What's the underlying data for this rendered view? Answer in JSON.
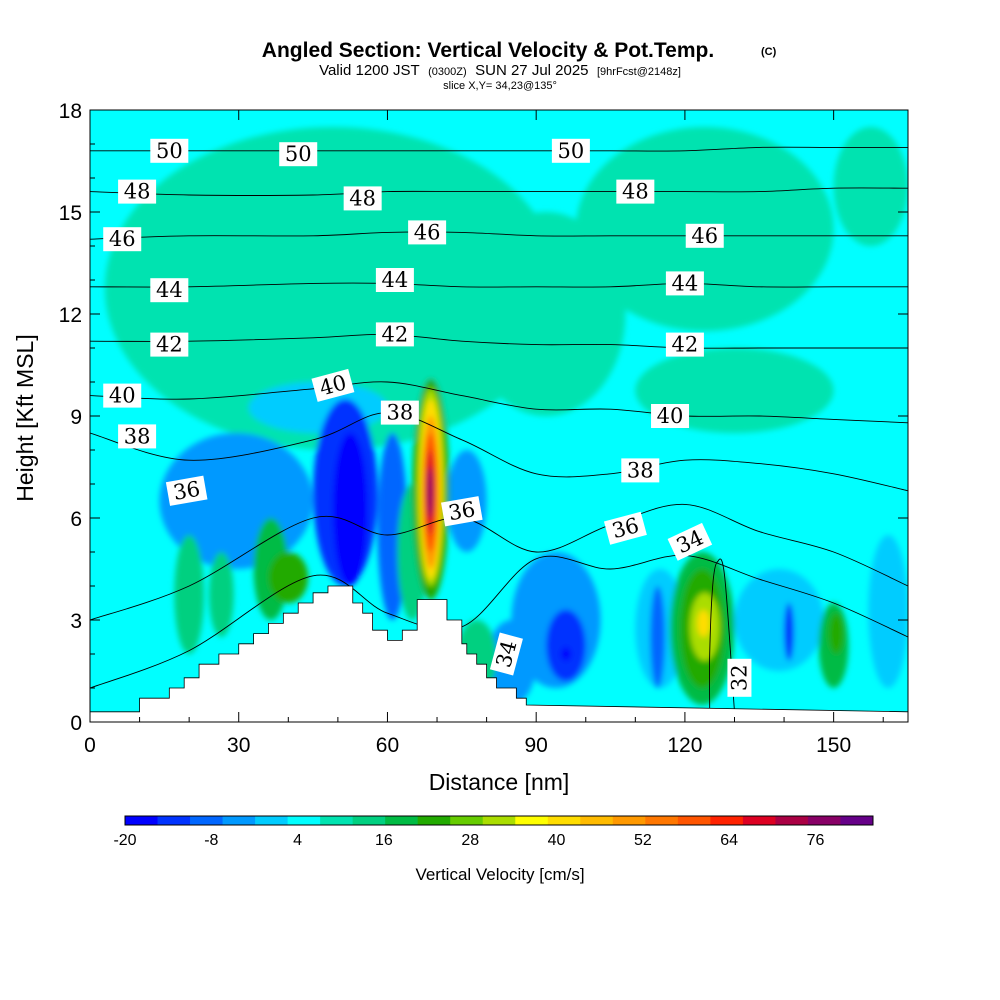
{
  "chart_data": {
    "type": "heatmap",
    "title": "Angled Section: Vertical Velocity & Pot.Temp.",
    "title_mark": "(C)",
    "subtitle": {
      "valid": "Valid 1200 JST",
      "utc": "(0300Z)",
      "date": "SUN 27 Jul 2025",
      "fcst": "[9hrFcst@2148z]",
      "slice": "slice X,Y= 34,23@135°"
    },
    "xlabel": "Distance [nm]",
    "ylabel": "Height [Kft MSL]",
    "xlim": [
      0,
      165
    ],
    "ylim": [
      0,
      18
    ],
    "x_ticks": [
      "0",
      "30",
      "60",
      "90",
      "120",
      "150"
    ],
    "y_ticks": [
      "0",
      "3",
      "6",
      "9",
      "12",
      "15",
      "18"
    ],
    "colorbar": {
      "title": "Vertical Velocity [cm/s]",
      "min": -20,
      "max": 84,
      "step": 4,
      "tick_labels": [
        "-20",
        "-8",
        "4",
        "16",
        "28",
        "40",
        "52",
        "64",
        "76"
      ],
      "colors": [
        "#0000ff",
        "#0033ff",
        "#0066ff",
        "#0099ff",
        "#00ccff",
        "#00ffff",
        "#00e3b0",
        "#00d080",
        "#00bb44",
        "#22aa00",
        "#66cc00",
        "#aadd00",
        "#ffff00",
        "#ffdd00",
        "#ffbb00",
        "#ff9900",
        "#ff7700",
        "#ff5500",
        "#ff2200",
        "#dd0022",
        "#aa0044",
        "#880066",
        "#660088"
      ]
    },
    "background_value": 2,
    "velocity_cells": [
      {
        "x": [
          3,
          95
        ],
        "y": [
          8,
          17.5
        ],
        "value": 6
      },
      {
        "x": [
          98,
          150
        ],
        "y": [
          11.5,
          17.5
        ],
        "value": 6
      },
      {
        "x": [
          150,
          165
        ],
        "y": [
          14,
          17.5
        ],
        "value": 6
      },
      {
        "x": [
          76,
          108
        ],
        "y": [
          9,
          15
        ],
        "value": 6
      },
      {
        "x": [
          110,
          150
        ],
        "y": [
          8.5,
          11
        ],
        "value": 6
      },
      {
        "x": [
          32,
          60
        ],
        "y": [
          8.5,
          10
        ],
        "value": -2
      },
      {
        "x": [
          14,
          45
        ],
        "y": [
          4.5,
          8.5
        ],
        "value": -6
      },
      {
        "x": [
          45,
          58
        ],
        "y": [
          4,
          9.5
        ],
        "value": -14
      },
      {
        "x": [
          49,
          56
        ],
        "y": [
          4,
          8.5
        ],
        "value": -20
      },
      {
        "x": [
          58,
          64
        ],
        "y": [
          3,
          8.5
        ],
        "value": -10
      },
      {
        "x": [
          72,
          80
        ],
        "y": [
          5,
          8
        ],
        "value": -6
      },
      {
        "x": [
          85,
          103
        ],
        "y": [
          1,
          5
        ],
        "value": -6
      },
      {
        "x": [
          92,
          100
        ],
        "y": [
          1.2,
          3.3
        ],
        "value": -14
      },
      {
        "x": [
          95,
          97
        ],
        "y": [
          1.8,
          2.2
        ],
        "value": -20
      },
      {
        "x": [
          80,
          90
        ],
        "y": [
          0.5,
          3
        ],
        "value": -6
      },
      {
        "x": [
          110,
          120
        ],
        "y": [
          1,
          4.5
        ],
        "value": -2
      },
      {
        "x": [
          130,
          148
        ],
        "y": [
          1.5,
          4.5
        ],
        "value": -2
      },
      {
        "x": [
          113,
          116
        ],
        "y": [
          1,
          4
        ],
        "value": -10
      },
      {
        "x": [
          140,
          142
        ],
        "y": [
          1.8,
          3.5
        ],
        "value": -14
      },
      {
        "x": [
          157,
          165
        ],
        "y": [
          1,
          5.5
        ],
        "value": -2
      },
      {
        "x": [
          17,
          23
        ],
        "y": [
          2,
          5.5
        ],
        "value": 10
      },
      {
        "x": [
          24,
          29
        ],
        "y": [
          2.5,
          5
        ],
        "value": 10
      },
      {
        "x": [
          33,
          40
        ],
        "y": [
          3,
          6
        ],
        "value": 14
      },
      {
        "x": [
          36,
          44
        ],
        "y": [
          3.5,
          5
        ],
        "value": 18
      },
      {
        "x": [
          62,
          68
        ],
        "y": [
          3,
          7
        ],
        "value": 10
      },
      {
        "x": [
          74,
          82
        ],
        "y": [
          0.8,
          3
        ],
        "value": 10
      },
      {
        "x": [
          117,
          130
        ],
        "y": [
          0.5,
          5
        ],
        "value": 14
      },
      {
        "x": [
          119,
          128
        ],
        "y": [
          1,
          4.5
        ],
        "value": 18
      },
      {
        "x": [
          121,
          127
        ],
        "y": [
          1.8,
          3.8
        ],
        "value": 26
      },
      {
        "x": [
          122.5,
          125
        ],
        "y": [
          2.5,
          3.3
        ],
        "value": 34
      },
      {
        "x": [
          147,
          153
        ],
        "y": [
          1,
          3.5
        ],
        "value": 14
      },
      {
        "x": [
          149,
          152
        ],
        "y": [
          2,
          3.2
        ],
        "value": 18
      },
      {
        "x": [
          65,
          72.5
        ],
        "y": [
          3.6,
          10.1
        ],
        "value": 18
      },
      {
        "x": [
          66,
          71.5
        ],
        "y": [
          4,
          9.8
        ],
        "value": 26
      },
      {
        "x": [
          66.5,
          71
        ],
        "y": [
          4.2,
          9.5
        ],
        "value": 34
      },
      {
        "x": [
          67,
          70.5
        ],
        "y": [
          4.5,
          9
        ],
        "value": 42
      },
      {
        "x": [
          67.3,
          70
        ],
        "y": [
          5,
          8.5
        ],
        "value": 50
      },
      {
        "x": [
          67.7,
          69.5
        ],
        "y": [
          5.5,
          8
        ],
        "value": 58
      },
      {
        "x": [
          68,
          69.2
        ],
        "y": [
          6,
          7.5
        ],
        "value": 66
      }
    ],
    "terrain": [
      [
        0,
        0.3
      ],
      [
        10,
        0.3
      ],
      [
        10,
        0.7
      ],
      [
        16,
        0.7
      ],
      [
        16,
        1.0
      ],
      [
        19,
        1.0
      ],
      [
        19,
        1.3
      ],
      [
        22,
        1.3
      ],
      [
        22,
        1.7
      ],
      [
        26,
        1.7
      ],
      [
        26,
        2.0
      ],
      [
        30,
        2.0
      ],
      [
        30,
        2.3
      ],
      [
        33,
        2.3
      ],
      [
        33,
        2.6
      ],
      [
        36,
        2.6
      ],
      [
        36,
        2.9
      ],
      [
        39,
        2.9
      ],
      [
        39,
        3.2
      ],
      [
        42,
        3.2
      ],
      [
        42,
        3.5
      ],
      [
        45,
        3.5
      ],
      [
        45,
        3.8
      ],
      [
        48,
        3.8
      ],
      [
        48,
        4.0
      ],
      [
        53,
        4.0
      ],
      [
        53,
        3.5
      ],
      [
        55,
        3.5
      ],
      [
        55,
        3.2
      ],
      [
        57,
        3.2
      ],
      [
        57,
        2.7
      ],
      [
        60,
        2.7
      ],
      [
        60,
        2.4
      ],
      [
        63,
        2.4
      ],
      [
        63,
        2.7
      ],
      [
        66,
        2.7
      ],
      [
        66,
        3.6
      ],
      [
        72,
        3.6
      ],
      [
        72,
        3.0
      ],
      [
        75,
        3.0
      ],
      [
        75,
        2.3
      ],
      [
        76,
        2.3
      ],
      [
        76,
        2.0
      ],
      [
        78,
        2.0
      ],
      [
        78,
        1.7
      ],
      [
        80,
        1.7
      ],
      [
        80,
        1.3
      ],
      [
        82,
        1.3
      ],
      [
        82,
        1.0
      ],
      [
        86,
        1.0
      ],
      [
        86,
        0.7
      ],
      [
        88,
        0.7
      ],
      [
        88,
        0.5
      ],
      [
        165,
        0.3
      ]
    ],
    "theta_contours": [
      {
        "value": 32,
        "points": [
          [
            125.0,
            0.3
          ],
          [
            125.0,
            2.0
          ],
          [
            125.6,
            4.0
          ],
          [
            126.5,
            4.7
          ],
          [
            128.0,
            4.3
          ],
          [
            130.0,
            0.3
          ]
        ]
      },
      {
        "value": 34,
        "points": [
          [
            0.0,
            1.0
          ],
          [
            20.0,
            2.1
          ],
          [
            45.0,
            4.3
          ],
          [
            60.0,
            3.2
          ],
          [
            75.0,
            2.8
          ],
          [
            90.0,
            4.8
          ],
          [
            105.0,
            4.5
          ],
          [
            120.0,
            4.9
          ],
          [
            135.0,
            4.2
          ],
          [
            150.0,
            3.5
          ],
          [
            165.0,
            2.5
          ]
        ]
      },
      {
        "value": 36,
        "points": [
          [
            0.0,
            3.0
          ],
          [
            20.0,
            4.0
          ],
          [
            45.0,
            6.0
          ],
          [
            60.0,
            5.5
          ],
          [
            75.0,
            6.0
          ],
          [
            90.0,
            5.0
          ],
          [
            105.0,
            5.8
          ],
          [
            120.0,
            6.4
          ],
          [
            135.0,
            5.6
          ],
          [
            150.0,
            5.0
          ],
          [
            165.0,
            4.0
          ]
        ]
      },
      {
        "value": 38,
        "points": [
          [
            0.0,
            8.5
          ],
          [
            20.0,
            7.7
          ],
          [
            45.0,
            8.3
          ],
          [
            60.0,
            9.1
          ],
          [
            75.0,
            8.3
          ],
          [
            90.0,
            7.3
          ],
          [
            105.0,
            7.3
          ],
          [
            120.0,
            7.7
          ],
          [
            135.0,
            7.6
          ],
          [
            150.0,
            7.3
          ],
          [
            165.0,
            6.8
          ]
        ]
      },
      {
        "value": 40,
        "points": [
          [
            0.0,
            9.6
          ],
          [
            20.0,
            9.5
          ],
          [
            45.0,
            9.8
          ],
          [
            60.0,
            10.0
          ],
          [
            75.0,
            9.6
          ],
          [
            90.0,
            9.2
          ],
          [
            105.0,
            9.2
          ],
          [
            120.0,
            9.0
          ],
          [
            135.0,
            9.0
          ],
          [
            150.0,
            8.9
          ],
          [
            165.0,
            8.8
          ]
        ]
      },
      {
        "value": 42,
        "points": [
          [
            0.0,
            11.2
          ],
          [
            20.0,
            11.2
          ],
          [
            45.0,
            11.3
          ],
          [
            60.0,
            11.4
          ],
          [
            75.0,
            11.2
          ],
          [
            90.0,
            11.1
          ],
          [
            105.0,
            11.1
          ],
          [
            120.0,
            11.0
          ],
          [
            135.0,
            11.0
          ],
          [
            150.0,
            11.0
          ],
          [
            165.0,
            11.0
          ]
        ]
      },
      {
        "value": 44,
        "points": [
          [
            0.0,
            12.8
          ],
          [
            20.0,
            12.8
          ],
          [
            45.0,
            12.9
          ],
          [
            60.0,
            12.9
          ],
          [
            75.0,
            12.8
          ],
          [
            90.0,
            12.8
          ],
          [
            105.0,
            12.8
          ],
          [
            120.0,
            12.9
          ],
          [
            135.0,
            12.8
          ],
          [
            150.0,
            12.8
          ],
          [
            165.0,
            12.8
          ]
        ]
      },
      {
        "value": 46,
        "points": [
          [
            0.0,
            14.2
          ],
          [
            20.0,
            14.3
          ],
          [
            45.0,
            14.3
          ],
          [
            60.0,
            14.4
          ],
          [
            75.0,
            14.4
          ],
          [
            90.0,
            14.3
          ],
          [
            105.0,
            14.3
          ],
          [
            120.0,
            14.3
          ],
          [
            135.0,
            14.3
          ],
          [
            150.0,
            14.3
          ],
          [
            165.0,
            14.3
          ]
        ]
      },
      {
        "value": 48,
        "points": [
          [
            0.0,
            15.6
          ],
          [
            20.0,
            15.5
          ],
          [
            45.0,
            15.5
          ],
          [
            60.0,
            15.6
          ],
          [
            75.0,
            15.6
          ],
          [
            90.0,
            15.6
          ],
          [
            105.0,
            15.6
          ],
          [
            120.0,
            15.6
          ],
          [
            135.0,
            15.6
          ],
          [
            150.0,
            15.7
          ],
          [
            165.0,
            15.7
          ]
        ]
      },
      {
        "value": 50,
        "points": [
          [
            0.0,
            16.8
          ],
          [
            20.0,
            16.8
          ],
          [
            45.0,
            16.8
          ],
          [
            60.0,
            16.8
          ],
          [
            75.0,
            16.8
          ],
          [
            90.0,
            16.8
          ],
          [
            105.0,
            16.8
          ],
          [
            120.0,
            16.8
          ],
          [
            135.0,
            16.9
          ],
          [
            150.0,
            16.9
          ],
          [
            165.0,
            16.9
          ]
        ]
      }
    ],
    "contour_labels": [
      {
        "text": "50",
        "x": 16,
        "y": 16.8,
        "angle": 0
      },
      {
        "text": "50",
        "x": 42,
        "y": 16.7,
        "angle": 0
      },
      {
        "text": "50",
        "x": 97,
        "y": 16.8,
        "angle": 0
      },
      {
        "text": "48",
        "x": 9.5,
        "y": 15.6,
        "angle": 0
      },
      {
        "text": "48",
        "x": 55,
        "y": 15.4,
        "angle": 0
      },
      {
        "text": "48",
        "x": 110,
        "y": 15.6,
        "angle": 0
      },
      {
        "text": "46",
        "x": 6.5,
        "y": 14.2,
        "angle": 0
      },
      {
        "text": "46",
        "x": 68,
        "y": 14.4,
        "angle": 0
      },
      {
        "text": "46",
        "x": 124,
        "y": 14.3,
        "angle": 0
      },
      {
        "text": "44",
        "x": 16,
        "y": 12.7,
        "angle": 0
      },
      {
        "text": "44",
        "x": 61.5,
        "y": 13.0,
        "angle": 0
      },
      {
        "text": "44",
        "x": 120,
        "y": 12.9,
        "angle": 0
      },
      {
        "text": "42",
        "x": 16,
        "y": 11.1,
        "angle": 0
      },
      {
        "text": "42",
        "x": 61.5,
        "y": 11.4,
        "angle": 0
      },
      {
        "text": "42",
        "x": 120,
        "y": 11.1,
        "angle": 0
      },
      {
        "text": "40",
        "x": 6.5,
        "y": 9.6,
        "angle": 0
      },
      {
        "text": "40",
        "x": 49,
        "y": 9.9,
        "angle": -15
      },
      {
        "text": "40",
        "x": 117,
        "y": 9.0,
        "angle": 0
      },
      {
        "text": "38",
        "x": 9.5,
        "y": 8.4,
        "angle": 0
      },
      {
        "text": "38",
        "x": 62.5,
        "y": 9.1,
        "angle": 0
      },
      {
        "text": "38",
        "x": 111,
        "y": 7.4,
        "angle": 0
      },
      {
        "text": "36",
        "x": 19.5,
        "y": 6.8,
        "angle": -10
      },
      {
        "text": "36",
        "x": 75,
        "y": 6.2,
        "angle": -10
      },
      {
        "text": "36",
        "x": 108,
        "y": 5.7,
        "angle": -15
      },
      {
        "text": "34",
        "x": 121,
        "y": 5.3,
        "angle": -25
      },
      {
        "text": "34",
        "x": 84,
        "y": 2.0,
        "angle": -75
      },
      {
        "text": "32",
        "x": 131,
        "y": 1.3,
        "angle": -90
      }
    ]
  }
}
